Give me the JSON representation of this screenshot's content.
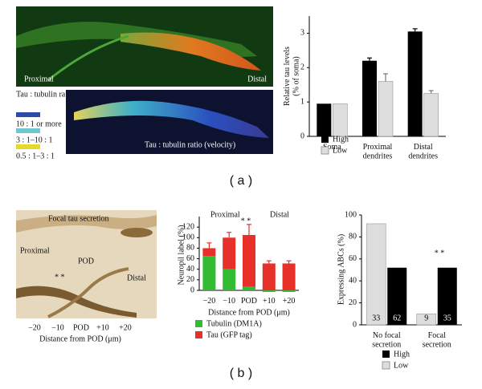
{
  "panels": {
    "a": {
      "image_top": {
        "left_label": "Proximal",
        "right_label": "Distal"
      },
      "legend_title": "Tau : tubulin ratio",
      "legend_items": [
        "10 : 1 or more",
        "3 : 1–10 : 1",
        "0.5 : 1–3 : 1"
      ],
      "image_bottom_caption": "Tau : tubulin ratio (velocity)",
      "label": "( a )"
    },
    "b": {
      "image_labels": [
        "Focal tau secretion",
        "Proximal",
        "POD",
        "Distal",
        "* *"
      ],
      "axis_ticks": [
        "−20",
        "−10",
        "POD",
        "+10",
        "+20"
      ],
      "axis_label": "Distance from POD (μm)",
      "label": "( b )"
    }
  },
  "chart_data": [
    {
      "type": "bar",
      "y_label": "Relative tau levels (% of soma)",
      "categories": [
        "Soma",
        "Proximal dendrites",
        "Distal dendrites"
      ],
      "series": [
        {
          "name": "High",
          "color": "#000000",
          "values": [
            0.95,
            2.2,
            3.05
          ],
          "errors": [
            0,
            0.08,
            0.08
          ]
        },
        {
          "name": "Low",
          "color": "#dddddd",
          "values": [
            0.95,
            1.6,
            1.25
          ],
          "errors": [
            0,
            0.22,
            0.08
          ]
        }
      ],
      "ylim": [
        0,
        3.5
      ],
      "yticks": [
        0,
        1,
        2,
        3
      ]
    },
    {
      "type": "stacked-bar",
      "y_label": "Neuropil label (%)",
      "x_label": "Distance from POD (μm)",
      "categories": [
        "−20",
        "−10",
        "POD",
        "+10",
        "+20"
      ],
      "series": [
        {
          "name": "Tubulin (DM1A)",
          "color": "#33bb33",
          "values": [
            65,
            40,
            7,
            -3,
            -3
          ]
        },
        {
          "name": "Tau (GFP tag)",
          "color": "#e8302a",
          "values": [
            15,
            60,
            98,
            51,
            51
          ],
          "errors": [
            10,
            10,
            20,
            5,
            5
          ]
        }
      ],
      "annotations": [
        "Proximal",
        "Distal",
        "* *"
      ],
      "ylim": [
        0,
        140
      ],
      "yticks": [
        0,
        20,
        40,
        60,
        80,
        100,
        120
      ]
    },
    {
      "type": "bar",
      "y_label": "Expressing ABCs (%)",
      "categories": [
        "No focal secretion",
        "Focal secretion"
      ],
      "series": [
        {
          "name": "Low",
          "color": "#dddddd",
          "values": [
            92,
            10
          ],
          "counts": [
            "33",
            "9"
          ]
        },
        {
          "name": "High",
          "color": "#000000",
          "values": [
            52,
            52
          ],
          "counts": [
            "62",
            "35"
          ]
        }
      ],
      "legend_order": [
        1,
        0
      ],
      "annotations": [
        "* *"
      ],
      "ylim": [
        0,
        100
      ],
      "yticks": [
        0,
        20,
        40,
        60,
        80,
        100
      ]
    }
  ]
}
